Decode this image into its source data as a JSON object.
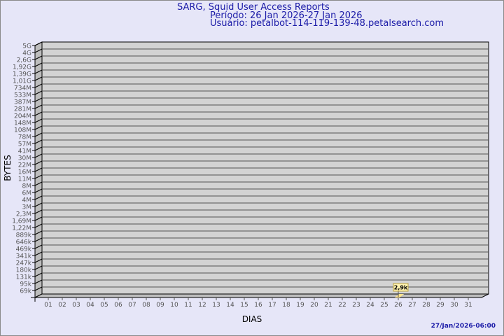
{
  "header": {
    "title": "SARG, Squid User Access Reports",
    "period": "Período: 26 Jan 2026-27 Jan 2026",
    "user": "Usuário: petalbot-114-119-139-48.petalsearch.com"
  },
  "footer": {
    "timestamp": "27/Jan/2026-06:00"
  },
  "chart_data": {
    "type": "bar",
    "title": "SARG, Squid User Access Reports",
    "xlabel": "DIAS",
    "ylabel": "BYTES",
    "categories": [
      "01",
      "02",
      "03",
      "04",
      "05",
      "06",
      "07",
      "08",
      "09",
      "10",
      "11",
      "12",
      "13",
      "14",
      "15",
      "16",
      "17",
      "18",
      "19",
      "20",
      "21",
      "22",
      "23",
      "24",
      "25",
      "26",
      "27",
      "28",
      "29",
      "30",
      "31"
    ],
    "y_tick_labels": [
      "5G",
      "4G",
      "2,6G",
      "1,92G",
      "1,39G",
      "1,01G",
      "734M",
      "533M",
      "387M",
      "281M",
      "204M",
      "148M",
      "108M",
      "78M",
      "57M",
      "41M",
      "30M",
      "22M",
      "16M",
      "11M",
      "8M",
      "6M",
      "4M",
      "3M",
      "2,3M",
      "1,69M",
      "1,22M",
      "889k",
      "646k",
      "469k",
      "341k",
      "247k",
      "180k",
      "131k",
      "95k",
      "69k"
    ],
    "y_scale": "log",
    "series": [
      {
        "values": [
          null,
          null,
          null,
          null,
          null,
          null,
          null,
          null,
          null,
          null,
          null,
          null,
          null,
          null,
          null,
          null,
          null,
          null,
          null,
          null,
          null,
          null,
          null,
          null,
          null,
          2900,
          null,
          null,
          null,
          null,
          null
        ],
        "data_labels": {
          "26": "2,9k"
        }
      }
    ],
    "grid": true,
    "style": "3d",
    "colors": {
      "background": "#e6e6f8",
      "wall": "#d3d3d3",
      "side": "#bdbdbd",
      "bar": "#ffe38a",
      "text": "#1c1ca8"
    }
  }
}
